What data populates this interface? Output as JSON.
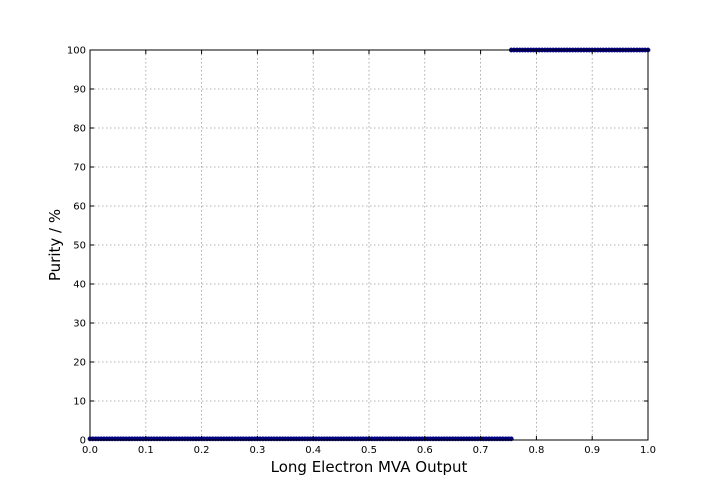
{
  "chart_data": {
    "type": "scatter",
    "title": "",
    "xlabel": "Long Electron MVA Output",
    "ylabel": "Purity / %",
    "xlim": [
      0.0,
      1.0
    ],
    "ylim": [
      0,
      100
    ],
    "grid": true,
    "x_ticks": [
      "0.0",
      "0.1",
      "0.2",
      "0.3",
      "0.4",
      "0.5",
      "0.6",
      "0.7",
      "0.8",
      "0.9",
      "1.0"
    ],
    "y_ticks": [
      "0",
      "10",
      "20",
      "30",
      "40",
      "50",
      "60",
      "70",
      "80",
      "90",
      "100"
    ],
    "marker_color": "#000080",
    "series": [
      {
        "x_start": 0.0,
        "x_end": 0.755,
        "x_step": 0.005,
        "y": 0.3
      },
      {
        "x_start": 0.755,
        "x_end": 1.0,
        "x_step": 0.005,
        "y": 100
      }
    ]
  }
}
